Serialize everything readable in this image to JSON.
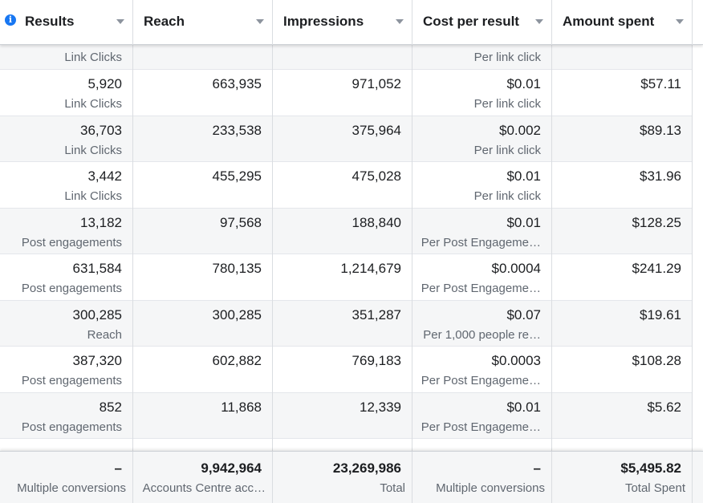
{
  "header": {
    "columns": [
      "Results",
      "Reach",
      "Impressions",
      "Cost per result",
      "Amount spent"
    ]
  },
  "table": {
    "partial_row": {
      "results_sub": "Link Clicks",
      "cost_sub": "Per link click"
    },
    "rows": [
      [
        {
          "main": "5,920",
          "sub": "Link Clicks"
        },
        {
          "main": "663,935"
        },
        {
          "main": "971,052"
        },
        {
          "main": "$0.01",
          "sub": "Per link click"
        },
        {
          "main": "$57.11"
        }
      ],
      [
        {
          "main": "36,703",
          "sub": "Link Clicks"
        },
        {
          "main": "233,538"
        },
        {
          "main": "375,964"
        },
        {
          "main": "$0.002",
          "sub": "Per link click"
        },
        {
          "main": "$89.13"
        }
      ],
      [
        {
          "main": "3,442",
          "sub": "Link Clicks"
        },
        {
          "main": "455,295"
        },
        {
          "main": "475,028"
        },
        {
          "main": "$0.01",
          "sub": "Per link click"
        },
        {
          "main": "$31.96"
        }
      ],
      [
        {
          "main": "13,182",
          "sub": "Post engagements"
        },
        {
          "main": "97,568"
        },
        {
          "main": "188,840"
        },
        {
          "main": "$0.01",
          "sub": "Per Post Engageme…"
        },
        {
          "main": "$128.25"
        }
      ],
      [
        {
          "main": "631,584",
          "sub": "Post engagements"
        },
        {
          "main": "780,135"
        },
        {
          "main": "1,214,679"
        },
        {
          "main": "$0.0004",
          "sub": "Per Post Engageme…"
        },
        {
          "main": "$241.29"
        }
      ],
      [
        {
          "main": "300,285",
          "sub": "Reach"
        },
        {
          "main": "300,285"
        },
        {
          "main": "351,287"
        },
        {
          "main": "$0.07",
          "sub": "Per 1,000 people re…"
        },
        {
          "main": "$19.61"
        }
      ],
      [
        {
          "main": "387,320",
          "sub": "Post engagements"
        },
        {
          "main": "602,882"
        },
        {
          "main": "769,183"
        },
        {
          "main": "$0.0003",
          "sub": "Per Post Engageme…"
        },
        {
          "main": "$108.28"
        }
      ],
      [
        {
          "main": "852",
          "sub": "Post engagements"
        },
        {
          "main": "11,868"
        },
        {
          "main": "12,339"
        },
        {
          "main": "$0.01",
          "sub": "Per Post Engageme…"
        },
        {
          "main": "$5.62"
        }
      ]
    ],
    "footer": [
      {
        "main": "–",
        "sub": "Multiple conversions"
      },
      {
        "main": "9,942,964",
        "sub": "Accounts Centre acc…"
      },
      {
        "main": "23,269,986",
        "sub": "Total"
      },
      {
        "main": "–",
        "sub": "Multiple conversions"
      },
      {
        "main": "$5,495.82",
        "sub": "Total Spent"
      }
    ]
  }
}
